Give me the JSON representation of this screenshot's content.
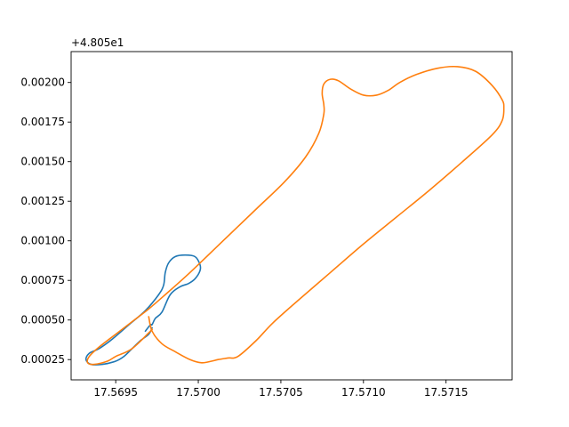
{
  "chart_data": {
    "type": "line",
    "title": "",
    "xlabel": "",
    "ylabel": "",
    "y_offset_label": "+4.805e1",
    "xlim": [
      17.56923,
      17.5719
    ],
    "ylim": [
      0.000122,
      0.002195
    ],
    "x_ticks": [
      {
        "value": 17.5695,
        "label": "17.5695"
      },
      {
        "value": 17.57,
        "label": "17.5700"
      },
      {
        "value": 17.5705,
        "label": "17.5705"
      },
      {
        "value": 17.571,
        "label": "17.5710"
      },
      {
        "value": 17.5715,
        "label": "17.5715"
      }
    ],
    "y_ticks": [
      {
        "value": 0.00025,
        "label": "0.00025"
      },
      {
        "value": 0.0005,
        "label": "0.00050"
      },
      {
        "value": 0.00075,
        "label": "0.00075"
      },
      {
        "value": 0.001,
        "label": "0.00100"
      },
      {
        "value": 0.00125,
        "label": "0.00125"
      },
      {
        "value": 0.0015,
        "label": "0.00150"
      },
      {
        "value": 0.00175,
        "label": "0.00175"
      },
      {
        "value": 0.002,
        "label": "0.00200"
      }
    ],
    "grid": false,
    "series": [
      {
        "color": "#1f77b4",
        "x": [
          17.56968,
          17.56971,
          17.56972,
          17.56974,
          17.56978,
          17.56983,
          17.56989,
          17.56994,
          17.56998,
          17.57001,
          17.57001,
          17.56998,
          17.56992,
          17.56986,
          17.56982,
          17.5698,
          17.56979,
          17.56976,
          17.56968,
          17.56958,
          17.56948,
          17.5694,
          17.56934,
          17.56932,
          17.56935,
          17.56942,
          17.5695,
          17.56955,
          17.5696,
          17.56965,
          17.5697,
          17.56972
        ],
        "y": [
          0.00043,
          0.00047,
          0.00047,
          0.00051,
          0.00055,
          0.00066,
          0.00071,
          0.00073,
          0.00076,
          0.00081,
          0.00085,
          0.0009,
          0.00091,
          0.0009,
          0.00086,
          0.0008,
          0.00072,
          0.00066,
          0.00056,
          0.00047,
          0.00038,
          0.00032,
          0.00029,
          0.00025,
          0.00022,
          0.00022,
          0.00024,
          0.00027,
          0.00032,
          0.00037,
          0.00041,
          0.00045
        ]
      },
      {
        "color": "#ff7f0e",
        "x": [
          17.56972,
          17.5696,
          17.5695,
          17.56945,
          17.56937,
          17.56933,
          17.56934,
          17.5694,
          17.5695,
          17.5696,
          17.5697,
          17.5698,
          17.56995,
          17.57015,
          17.57035,
          17.57052,
          17.57065,
          17.57073,
          17.57076,
          17.57076,
          17.57075,
          17.57076,
          17.5708,
          17.57085,
          17.57092,
          17.571,
          17.57108,
          17.57115,
          17.57122,
          17.57132,
          17.57145,
          17.57157,
          17.57168,
          17.57178,
          17.57184,
          17.57185,
          17.57184,
          17.57178,
          17.5716,
          17.5714,
          17.5712,
          17.571,
          17.5708,
          17.5706,
          17.57045,
          17.57035,
          17.57024,
          17.57018,
          17.57012,
          17.57008,
          17.57002,
          17.56995,
          17.56986,
          17.56978,
          17.56972,
          17.5697
        ],
        "y": [
          0.00044,
          0.00032,
          0.00027,
          0.00024,
          0.00022,
          0.00023,
          0.00027,
          0.00033,
          0.00041,
          0.00049,
          0.00057,
          0.00066,
          0.0008,
          0.001,
          0.0012,
          0.00137,
          0.00153,
          0.00168,
          0.0018,
          0.00186,
          0.00193,
          0.00199,
          0.00202,
          0.00201,
          0.00196,
          0.00192,
          0.00192,
          0.00195,
          0.002,
          0.00205,
          0.00209,
          0.0021,
          0.00207,
          0.00198,
          0.00189,
          0.00184,
          0.00176,
          0.00167,
          0.0015,
          0.00132,
          0.00115,
          0.00098,
          0.0008,
          0.00062,
          0.00048,
          0.00037,
          0.00027,
          0.00026,
          0.00025,
          0.00024,
          0.00023,
          0.00025,
          0.0003,
          0.00035,
          0.00043,
          0.00052
        ]
      }
    ]
  }
}
